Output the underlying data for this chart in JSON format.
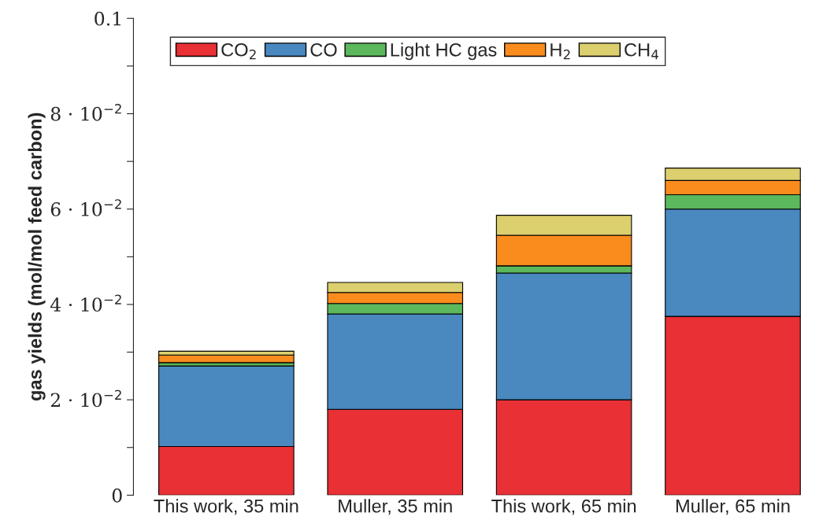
{
  "chart_data": {
    "type": "bar",
    "stacked": true,
    "ylabel": "gas yields (mol/mol feed carbon)",
    "categories": [
      "This work, 35 min",
      "Muller, 35 min",
      "This work, 65 min",
      "Muller, 65 min"
    ],
    "series": [
      {
        "name": "CO$_{2}$",
        "color": "#e83035",
        "values": [
          0.0102,
          0.018,
          0.02,
          0.0375
        ]
      },
      {
        "name": "CO",
        "color": "#4a89c0",
        "values": [
          0.0169,
          0.02,
          0.0266,
          0.0225
        ]
      },
      {
        "name": "Light HC gas",
        "color": "#5cb85c",
        "values": [
          0.0007,
          0.0022,
          0.0015,
          0.003
        ]
      },
      {
        "name": "H$_{2}$",
        "color": "#f98c1d",
        "values": [
          0.0016,
          0.0023,
          0.0064,
          0.003
        ]
      },
      {
        "name": "CH$_{4}$",
        "color": "#dccf6e",
        "values": [
          0.0008,
          0.0021,
          0.0042,
          0.0026
        ]
      }
    ],
    "ylim": [
      0,
      0.1
    ],
    "yticks": [
      0,
      {
        "value": 0.01,
        "label": null
      },
      {
        "value": 0.02,
        "label": "2 · 10$^{−2}$"
      },
      {
        "value": 0.03,
        "label": null
      },
      {
        "value": 0.04,
        "label": "4 · 10$^{−2}$"
      },
      {
        "value": 0.05,
        "label": null
      },
      {
        "value": 0.06,
        "label": "6 · 10$^{−2}$"
      },
      {
        "value": 0.07,
        "label": null
      },
      {
        "value": 0.08,
        "label": "8 · 10$^{−2}$"
      },
      {
        "value": 0.09,
        "label": null
      },
      {
        "value": 0.1,
        "label": "0.1"
      }
    ],
    "legend": "top left",
    "grid": false
  }
}
